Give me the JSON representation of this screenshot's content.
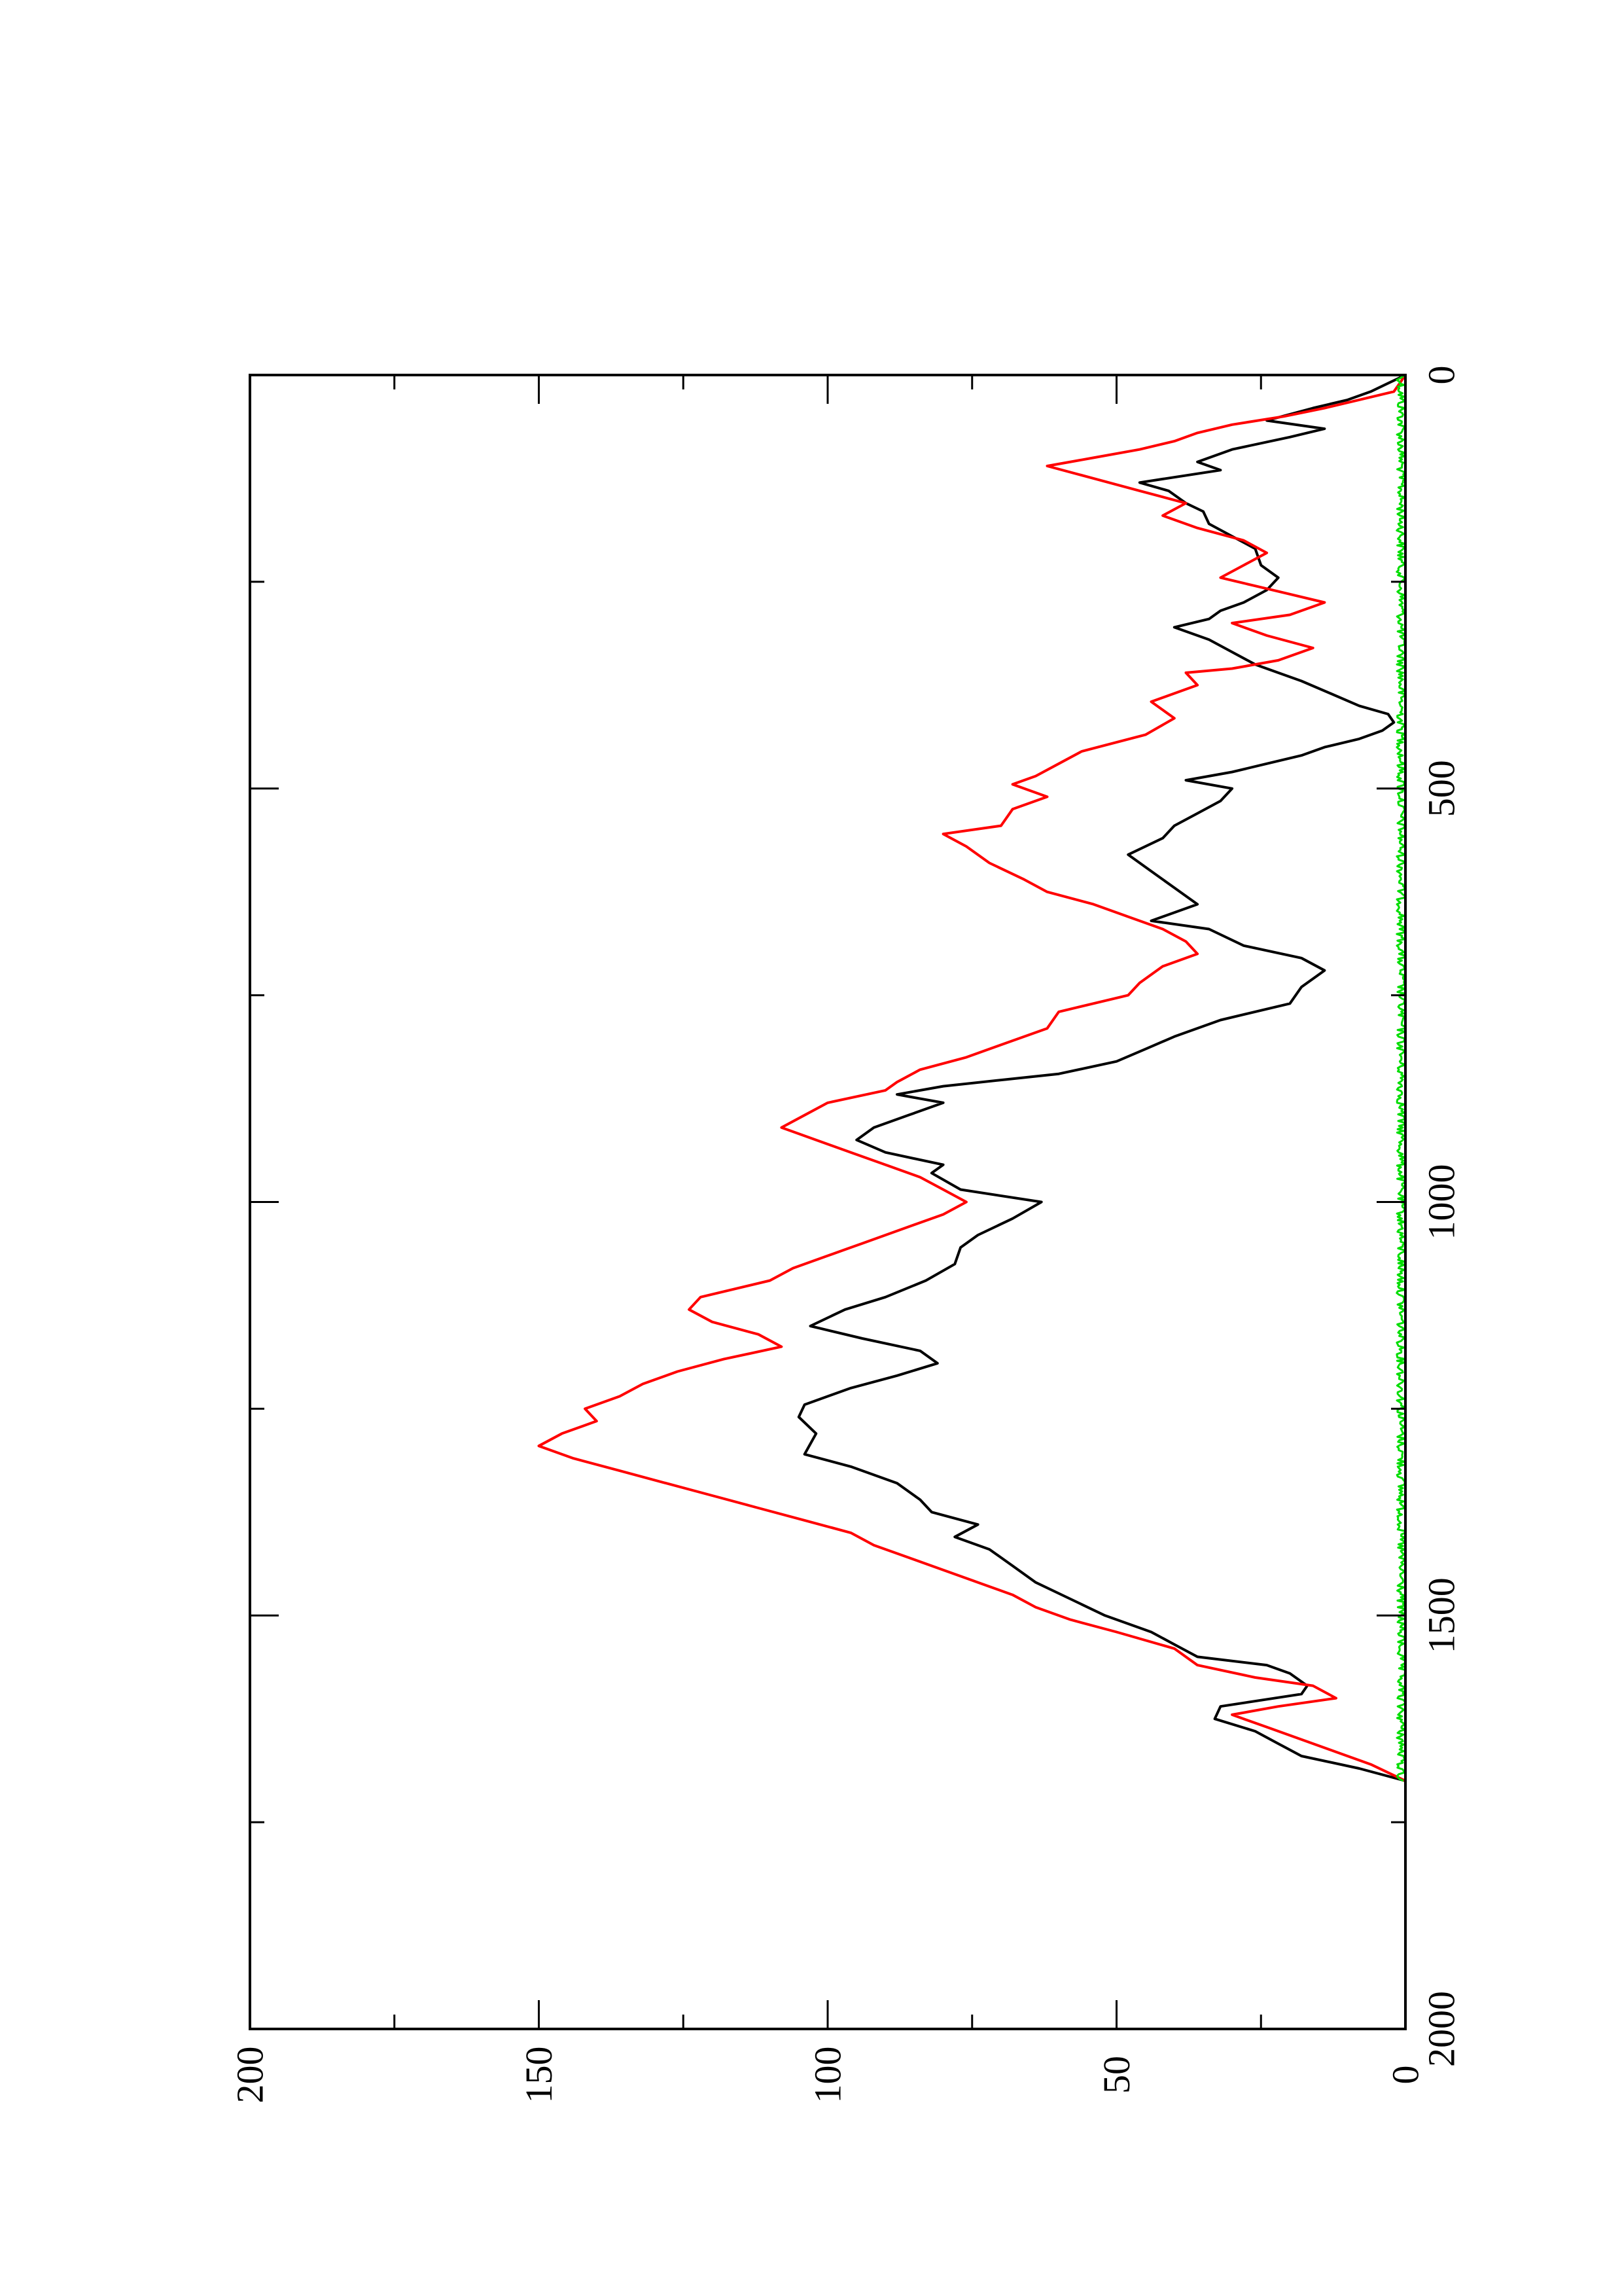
{
  "chart_data": {
    "type": "line",
    "rotated": "90deg-counterclockwise",
    "title": "",
    "xlabel": "",
    "ylabel": "",
    "xlim": [
      0,
      2000
    ],
    "ylim": [
      0,
      200
    ],
    "x_ticks": [
      0,
      500,
      1000,
      1500,
      2000
    ],
    "y_ticks": [
      0,
      50,
      100,
      150,
      200
    ],
    "x_tick_labels": [
      "0",
      "500",
      "1000",
      "1500",
      "2000"
    ],
    "y_tick_labels": [
      "0",
      "50",
      "100",
      "150",
      "200"
    ],
    "grid": false,
    "legend": "none",
    "series": [
      {
        "color": "#000000",
        "points": [
          [
            0,
            0
          ],
          [
            10,
            3
          ],
          [
            20,
            6
          ],
          [
            30,
            10
          ],
          [
            40,
            16
          ],
          [
            55,
            24
          ],
          [
            65,
            14
          ],
          [
            75,
            20
          ],
          [
            90,
            30
          ],
          [
            105,
            36
          ],
          [
            115,
            32
          ],
          [
            130,
            46
          ],
          [
            140,
            41
          ],
          [
            155,
            38
          ],
          [
            165,
            35
          ],
          [
            180,
            34
          ],
          [
            195,
            30
          ],
          [
            210,
            26
          ],
          [
            230,
            25
          ],
          [
            245,
            22
          ],
          [
            260,
            24
          ],
          [
            275,
            28
          ],
          [
            285,
            32
          ],
          [
            295,
            34
          ],
          [
            305,
            40
          ],
          [
            320,
            34
          ],
          [
            335,
            30
          ],
          [
            350,
            26
          ],
          [
            360,
            22
          ],
          [
            370,
            18
          ],
          [
            385,
            13
          ],
          [
            400,
            8
          ],
          [
            410,
            3
          ],
          [
            420,
            2
          ],
          [
            430,
            4
          ],
          [
            440,
            8
          ],
          [
            450,
            14
          ],
          [
            460,
            18
          ],
          [
            470,
            24
          ],
          [
            480,
            30
          ],
          [
            490,
            38
          ],
          [
            500,
            30
          ],
          [
            515,
            32
          ],
          [
            530,
            36
          ],
          [
            545,
            40
          ],
          [
            560,
            42
          ],
          [
            580,
            48
          ],
          [
            600,
            44
          ],
          [
            620,
            40
          ],
          [
            640,
            36
          ],
          [
            660,
            44
          ],
          [
            670,
            34
          ],
          [
            690,
            28
          ],
          [
            705,
            18
          ],
          [
            720,
            14
          ],
          [
            740,
            18
          ],
          [
            760,
            20
          ],
          [
            780,
            32
          ],
          [
            800,
            40
          ],
          [
            815,
            45
          ],
          [
            830,
            50
          ],
          [
            845,
            60
          ],
          [
            860,
            80
          ],
          [
            870,
            88
          ],
          [
            880,
            80
          ],
          [
            895,
            86
          ],
          [
            910,
            92
          ],
          [
            925,
            95
          ],
          [
            940,
            90
          ],
          [
            955,
            80
          ],
          [
            965,
            82
          ],
          [
            985,
            77
          ],
          [
            1000,
            63
          ],
          [
            1020,
            68
          ],
          [
            1040,
            74
          ],
          [
            1055,
            77
          ],
          [
            1075,
            78
          ],
          [
            1095,
            83
          ],
          [
            1115,
            90
          ],
          [
            1130,
            97
          ],
          [
            1150,
            103
          ],
          [
            1165,
            94
          ],
          [
            1180,
            84
          ],
          [
            1195,
            81
          ],
          [
            1210,
            88
          ],
          [
            1225,
            96
          ],
          [
            1245,
            104
          ],
          [
            1260,
            105
          ],
          [
            1280,
            102
          ],
          [
            1305,
            104
          ],
          [
            1320,
            96
          ],
          [
            1340,
            88
          ],
          [
            1360,
            84
          ],
          [
            1375,
            82
          ],
          [
            1390,
            74
          ],
          [
            1405,
            78
          ],
          [
            1420,
            72
          ],
          [
            1440,
            68
          ],
          [
            1460,
            64
          ],
          [
            1480,
            58
          ],
          [
            1500,
            52
          ],
          [
            1520,
            44
          ],
          [
            1535,
            40
          ],
          [
            1550,
            36
          ],
          [
            1560,
            24
          ],
          [
            1570,
            20
          ],
          [
            1585,
            17
          ],
          [
            1595,
            18
          ],
          [
            1610,
            32
          ],
          [
            1625,
            33
          ],
          [
            1640,
            26
          ],
          [
            1655,
            22
          ],
          [
            1670,
            18
          ],
          [
            1685,
            8
          ],
          [
            1700,
            0
          ]
        ]
      },
      {
        "color": "#ff0000",
        "points": [
          [
            0,
            0
          ],
          [
            10,
            1
          ],
          [
            20,
            2
          ],
          [
            30,
            8
          ],
          [
            40,
            14
          ],
          [
            50,
            21
          ],
          [
            60,
            30
          ],
          [
            70,
            36
          ],
          [
            80,
            40
          ],
          [
            90,
            46
          ],
          [
            100,
            54
          ],
          [
            110,
            62
          ],
          [
            125,
            54
          ],
          [
            140,
            46
          ],
          [
            155,
            38
          ],
          [
            170,
            42
          ],
          [
            185,
            36
          ],
          [
            200,
            28
          ],
          [
            215,
            24
          ],
          [
            230,
            28
          ],
          [
            245,
            32
          ],
          [
            255,
            26
          ],
          [
            265,
            20
          ],
          [
            275,
            14
          ],
          [
            290,
            20
          ],
          [
            300,
            30
          ],
          [
            315,
            24
          ],
          [
            330,
            16
          ],
          [
            345,
            22
          ],
          [
            355,
            30
          ],
          [
            360,
            38
          ],
          [
            375,
            36
          ],
          [
            395,
            44
          ],
          [
            415,
            40
          ],
          [
            435,
            45
          ],
          [
            455,
            56
          ],
          [
            470,
            60
          ],
          [
            485,
            64
          ],
          [
            495,
            68
          ],
          [
            510,
            62
          ],
          [
            525,
            68
          ],
          [
            545,
            70
          ],
          [
            555,
            80
          ],
          [
            570,
            76
          ],
          [
            590,
            72
          ],
          [
            610,
            66
          ],
          [
            625,
            62
          ],
          [
            640,
            54
          ],
          [
            655,
            48
          ],
          [
            670,
            42
          ],
          [
            685,
            38
          ],
          [
            700,
            36
          ],
          [
            715,
            42
          ],
          [
            735,
            46
          ],
          [
            750,
            48
          ],
          [
            770,
            60
          ],
          [
            790,
            62
          ],
          [
            810,
            70
          ],
          [
            825,
            76
          ],
          [
            840,
            84
          ],
          [
            855,
            88
          ],
          [
            865,
            90
          ],
          [
            880,
            100
          ],
          [
            895,
            104
          ],
          [
            910,
            108
          ],
          [
            925,
            102
          ],
          [
            940,
            96
          ],
          [
            955,
            90
          ],
          [
            970,
            84
          ],
          [
            985,
            80
          ],
          [
            1000,
            76
          ],
          [
            1015,
            80
          ],
          [
            1030,
            86
          ],
          [
            1050,
            94
          ],
          [
            1065,
            100
          ],
          [
            1080,
            106
          ],
          [
            1095,
            110
          ],
          [
            1115,
            122
          ],
          [
            1130,
            124
          ],
          [
            1145,
            120
          ],
          [
            1160,
            112
          ],
          [
            1175,
            108
          ],
          [
            1190,
            118
          ],
          [
            1205,
            126
          ],
          [
            1220,
            132
          ],
          [
            1235,
            136
          ],
          [
            1250,
            142
          ],
          [
            1265,
            140
          ],
          [
            1280,
            146
          ],
          [
            1295,
            150
          ],
          [
            1310,
            144
          ],
          [
            1325,
            136
          ],
          [
            1340,
            128
          ],
          [
            1355,
            120
          ],
          [
            1370,
            112
          ],
          [
            1385,
            104
          ],
          [
            1400,
            96
          ],
          [
            1415,
            92
          ],
          [
            1430,
            86
          ],
          [
            1445,
            80
          ],
          [
            1460,
            74
          ],
          [
            1475,
            68
          ],
          [
            1490,
            64
          ],
          [
            1505,
            58
          ],
          [
            1520,
            50
          ],
          [
            1540,
            40
          ],
          [
            1560,
            36
          ],
          [
            1575,
            26
          ],
          [
            1585,
            16
          ],
          [
            1600,
            12
          ],
          [
            1610,
            22
          ],
          [
            1620,
            30
          ],
          [
            1635,
            24
          ],
          [
            1650,
            18
          ],
          [
            1665,
            12
          ],
          [
            1680,
            6
          ],
          [
            1700,
            0
          ]
        ]
      },
      {
        "color": "#00dd00",
        "values_range": [
          0,
          1.5
        ],
        "noise_band": true,
        "x_range": [
          0,
          1700
        ]
      }
    ]
  }
}
